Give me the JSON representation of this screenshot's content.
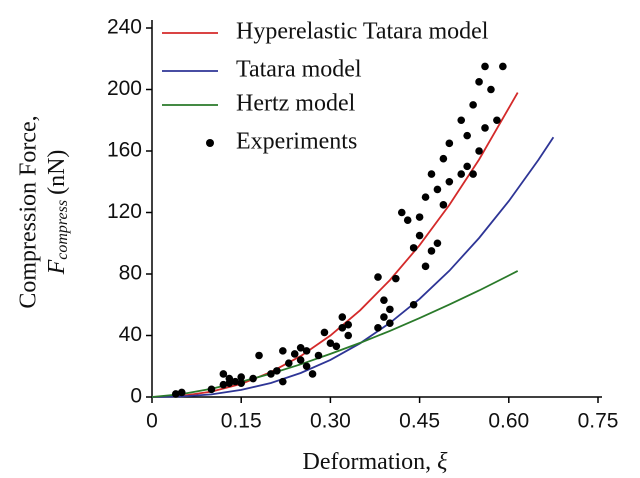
{
  "chart_data": {
    "type": "line",
    "xlabel": "Deformation,",
    "xlabel_symbol": "ξ",
    "ylabel": "Compression Force,",
    "ylabel_symbol": "F",
    "ylabel_subscript": "compress",
    "ylabel_unit": "(nN)",
    "xlim": [
      0,
      0.75
    ],
    "ylim": [
      0,
      240
    ],
    "xticks": [
      0,
      0.15,
      {
        "value": 0.3,
        "label": "0.30"
      },
      0.45,
      {
        "value": 0.6,
        "label": "0.60"
      },
      0.75
    ],
    "yticks": [
      0,
      40,
      80,
      120,
      160,
      200,
      240
    ],
    "legend": "upper left",
    "series": [
      {
        "name": "Hyperelastic Tatara model",
        "color": "#d42a2a",
        "type": "line",
        "x": [
          0,
          0.05,
          0.1,
          0.15,
          0.2,
          0.25,
          0.3,
          0.35,
          0.4,
          0.45,
          0.5,
          0.55,
          0.615
        ],
        "values": [
          0,
          0.7,
          3.5,
          8.5,
          16.2,
          26.6,
          40,
          56.4,
          76,
          98.7,
          124.9,
          154.5,
          198
        ]
      },
      {
        "name": "Tatara model",
        "color": "#2e3596",
        "type": "line",
        "x": [
          0,
          0.05,
          0.1,
          0.15,
          0.2,
          0.25,
          0.3,
          0.35,
          0.4,
          0.45,
          0.5,
          0.55,
          0.6,
          0.65,
          0.675
        ],
        "values": [
          0,
          0.3,
          1.7,
          4.6,
          9.1,
          15.6,
          24.1,
          34.9,
          48.2,
          63.8,
          82.1,
          103.4,
          127.4,
          154.3,
          169
        ]
      },
      {
        "name": "Hertz model",
        "color": "#2a7a2a",
        "type": "line",
        "x": [
          0,
          0.05,
          0.1,
          0.15,
          0.2,
          0.25,
          0.3,
          0.35,
          0.4,
          0.45,
          0.5,
          0.55,
          0.6,
          0.615
        ],
        "values": [
          0,
          1.9,
          5.4,
          9.9,
          15.2,
          21.3,
          28,
          35.2,
          43,
          51.3,
          60.1,
          69.3,
          79,
          82
        ]
      },
      {
        "name": "Experiments",
        "color": "#000000",
        "type": "scatter",
        "x": [
          0.04,
          0.05,
          0.1,
          0.12,
          0.12,
          0.13,
          0.13,
          0.14,
          0.15,
          0.15,
          0.17,
          0.18,
          0.2,
          0.21,
          0.22,
          0.22,
          0.23,
          0.24,
          0.25,
          0.25,
          0.26,
          0.26,
          0.27,
          0.28,
          0.29,
          0.3,
          0.31,
          0.32,
          0.32,
          0.33,
          0.33,
          0.38,
          0.38,
          0.39,
          0.39,
          0.4,
          0.4,
          0.41,
          0.42,
          0.43,
          0.44,
          0.44,
          0.45,
          0.45,
          0.46,
          0.46,
          0.47,
          0.47,
          0.48,
          0.48,
          0.49,
          0.49,
          0.5,
          0.5,
          0.52,
          0.52,
          0.53,
          0.54,
          0.55,
          0.55,
          0.56,
          0.56,
          0.57,
          0.58,
          0.59,
          0.53,
          0.54
        ],
        "values": [
          2,
          3,
          5,
          15,
          8,
          12,
          9,
          10,
          13,
          9,
          12,
          27,
          15,
          17,
          30,
          10,
          22,
          28,
          32,
          24,
          20,
          30,
          15,
          27,
          42,
          35,
          33,
          45,
          52,
          40,
          47,
          45,
          78,
          52,
          63,
          48,
          57,
          77,
          120,
          115,
          97,
          60,
          117,
          105,
          85,
          130,
          95,
          145,
          135,
          100,
          155,
          125,
          140,
          165,
          180,
          145,
          150,
          190,
          205,
          160,
          175,
          215,
          200,
          180,
          215,
          170,
          145
        ]
      }
    ]
  }
}
